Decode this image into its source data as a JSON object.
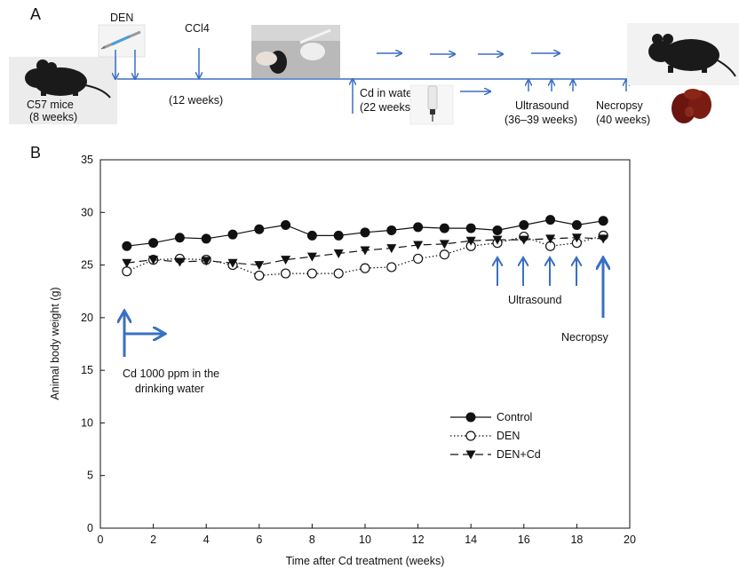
{
  "colors": {
    "accent": "#3a6fc4",
    "series": "#111111"
  },
  "panel_a": {
    "label": "A",
    "den": "DEN",
    "ccl4": "CCl4",
    "mice_line1": "C57 mice",
    "mice_line2": "(8 weeks)",
    "ccl4_duration": "(12 weeks)",
    "cd_line1": "Cd in water",
    "cd_line2": "(22 weeks)",
    "us_line1": "Ultrasound",
    "us_line2": "(36–39 weeks)",
    "nec_line1": "Necropsy",
    "nec_line2": "(40 weeks)",
    "icons": [
      "mouse-photo",
      "syringe-photo",
      "injection-photo",
      "water-bottle-photo",
      "mouse-photo",
      "liver-photo"
    ]
  },
  "panel_b": {
    "label": "B",
    "annot_cd_line1": "Cd 1000 ppm in the",
    "annot_cd_line2": "drinking water",
    "annot_ultrasound": "Ultrasound",
    "annot_necropsy": "Necropsy"
  },
  "chart_data": {
    "type": "line",
    "title": "",
    "xlabel": "Time after Cd treatment (weeks)",
    "ylabel": "Animal body weight (g)",
    "xlim": [
      0,
      20
    ],
    "ylim": [
      0,
      35
    ],
    "xticks": [
      0,
      2,
      4,
      6,
      8,
      10,
      12,
      14,
      16,
      18,
      20
    ],
    "yticks": [
      0,
      5,
      10,
      15,
      20,
      25,
      30,
      35
    ],
    "grid": false,
    "legend": "lower-right",
    "x": [
      1,
      2,
      3,
      4,
      5,
      6,
      7,
      8,
      9,
      10,
      11,
      12,
      13,
      14,
      15,
      16,
      17,
      18,
      19
    ],
    "series": [
      {
        "name": "Control",
        "marker": "filled-circle",
        "dash": "solid",
        "values": [
          26.8,
          27.1,
          27.6,
          27.5,
          27.9,
          28.4,
          28.8,
          27.8,
          27.8,
          28.1,
          28.3,
          28.6,
          28.5,
          28.5,
          28.3,
          28.8,
          29.3,
          28.8,
          29.2
        ]
      },
      {
        "name": "DEN",
        "marker": "open-circle",
        "dash": "dotted",
        "values": [
          24.4,
          25.5,
          25.6,
          25.5,
          25.0,
          24.0,
          24.2,
          24.2,
          24.2,
          24.7,
          24.8,
          25.6,
          26.0,
          26.8,
          27.1,
          27.7,
          26.8,
          27.1,
          27.8
        ]
      },
      {
        "name": "DEN+Cd",
        "marker": "filled-triangle-down",
        "dash": "dashed",
        "values": [
          25.2,
          25.5,
          25.3,
          25.4,
          25.2,
          25.0,
          25.5,
          25.8,
          26.1,
          26.4,
          26.6,
          26.9,
          27.0,
          27.3,
          27.4,
          27.4,
          27.5,
          27.6,
          27.5
        ]
      }
    ]
  }
}
